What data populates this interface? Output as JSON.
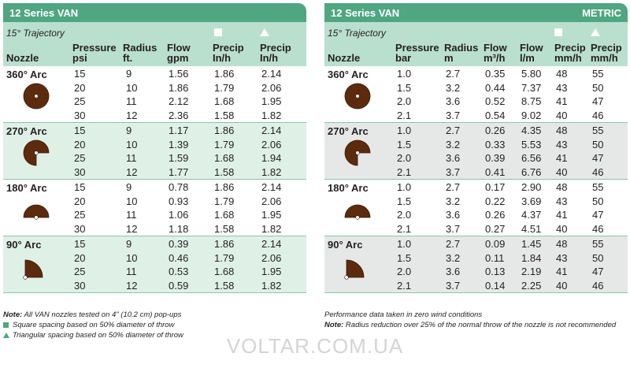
{
  "left": {
    "title": "12 Series VAN",
    "trajectory": "15° Trajectory",
    "headers": [
      {
        "line1": "",
        "line2": "Nozzle"
      },
      {
        "line1": "Pressure",
        "line2": "psi"
      },
      {
        "line1": "Radius",
        "line2": "ft."
      },
      {
        "line1": "Flow",
        "line2": "gpm"
      },
      {
        "line1": "Precip",
        "line2": "In/h"
      },
      {
        "line1": "Precip",
        "line2": "In/h"
      }
    ],
    "groups": [
      {
        "arc": "360° Arc",
        "rows": [
          [
            "15",
            "9",
            "1.56",
            "1.86",
            "2.14"
          ],
          [
            "20",
            "10",
            "1.86",
            "1.79",
            "2.06"
          ],
          [
            "25",
            "11",
            "2.12",
            "1.68",
            "1.95"
          ],
          [
            "30",
            "12",
            "2.36",
            "1.58",
            "1.82"
          ]
        ]
      },
      {
        "arc": "270° Arc",
        "rows": [
          [
            "15",
            "9",
            "1.17",
            "1.86",
            "2.14"
          ],
          [
            "20",
            "10",
            "1.39",
            "1.79",
            "2.06"
          ],
          [
            "25",
            "11",
            "1.59",
            "1.68",
            "1.94"
          ],
          [
            "30",
            "12",
            "1.77",
            "1.58",
            "1.82"
          ]
        ]
      },
      {
        "arc": "180° Arc",
        "rows": [
          [
            "15",
            "9",
            "0.78",
            "1.86",
            "2.14"
          ],
          [
            "20",
            "10",
            "0.93",
            "1.79",
            "2.06"
          ],
          [
            "25",
            "11",
            "1.06",
            "1.68",
            "1.95"
          ],
          [
            "30",
            "12",
            "1.18",
            "1.58",
            "1.82"
          ]
        ]
      },
      {
        "arc": "90° Arc",
        "rows": [
          [
            "15",
            "9",
            "0.39",
            "1.86",
            "2.14"
          ],
          [
            "20",
            "10",
            "0.46",
            "1.79",
            "2.06"
          ],
          [
            "25",
            "11",
            "0.53",
            "1.68",
            "1.95"
          ],
          [
            "30",
            "12",
            "0.59",
            "1.58",
            "1.82"
          ]
        ]
      }
    ],
    "notes": {
      "note_label": "Note:",
      "note_text": " All VAN nozzles tested on 4\" (10.2 cm) pop-ups",
      "square_note": "Square spacing based on 50% diameter of throw",
      "triangle_note": "Triangular spacing based on 50% diameter of throw"
    }
  },
  "right": {
    "title": "12 Series VAN",
    "badge": "METRIC",
    "trajectory": "15° Trajectory",
    "headers": [
      {
        "line1": "",
        "line2": "Nozzle"
      },
      {
        "line1": "Pressure",
        "line2": "bar"
      },
      {
        "line1": "Radius",
        "line2": "m"
      },
      {
        "line1": "Flow",
        "line2": "m³/h"
      },
      {
        "line1": "Flow",
        "line2": "l/m"
      },
      {
        "line1": "Precip",
        "line2": "mm/h"
      },
      {
        "line1": "Precip",
        "line2": "mm/h"
      }
    ],
    "groups": [
      {
        "arc": "360° Arc",
        "rows": [
          [
            "1.0",
            "2.7",
            "0.35",
            "5.80",
            "48",
            "55"
          ],
          [
            "1.5",
            "3.2",
            "0.44",
            "7.37",
            "43",
            "50"
          ],
          [
            "2.0",
            "3.6",
            "0.52",
            "8.75",
            "41",
            "47"
          ],
          [
            "2.1",
            "3.7",
            "0.54",
            "9.02",
            "40",
            "46"
          ]
        ]
      },
      {
        "arc": "270° Arc",
        "rows": [
          [
            "1.0",
            "2.7",
            "0.26",
            "4.35",
            "48",
            "55"
          ],
          [
            "1.5",
            "3.2",
            "0.33",
            "5.53",
            "43",
            "50"
          ],
          [
            "2.0",
            "3.6",
            "0.39",
            "6.56",
            "41",
            "47"
          ],
          [
            "2.1",
            "3.7",
            "0.41",
            "6.76",
            "40",
            "46"
          ]
        ]
      },
      {
        "arc": "180° Arc",
        "rows": [
          [
            "1.0",
            "2.7",
            "0.17",
            "2.90",
            "48",
            "55"
          ],
          [
            "1.5",
            "3.2",
            "0.22",
            "3.69",
            "43",
            "50"
          ],
          [
            "2.0",
            "3.6",
            "0.26",
            "4.37",
            "41",
            "47"
          ],
          [
            "2.1",
            "3.7",
            "0.27",
            "4.51",
            "40",
            "46"
          ]
        ]
      },
      {
        "arc": "90° Arc",
        "rows": [
          [
            "1.0",
            "2.7",
            "0.09",
            "1.45",
            "48",
            "55"
          ],
          [
            "1.5",
            "3.2",
            "0.11",
            "1.84",
            "43",
            "50"
          ],
          [
            "2.0",
            "3.6",
            "0.13",
            "2.19",
            "41",
            "47"
          ],
          [
            "2.1",
            "3.7",
            "0.14",
            "2.25",
            "40",
            "46"
          ]
        ]
      }
    ],
    "notes": {
      "line1": "Performance data taken in zero wind conditions",
      "note_label": "Note:",
      "note_text": " Radius reduction over 25% of the normal throw of the nozzle is not recommended"
    }
  },
  "watermark": "VOLTAR.COM.UA",
  "colors": {
    "header_green": "#4fa680",
    "light_green": "#b9dfce",
    "nozzle_brown": "#5c2b0e"
  }
}
